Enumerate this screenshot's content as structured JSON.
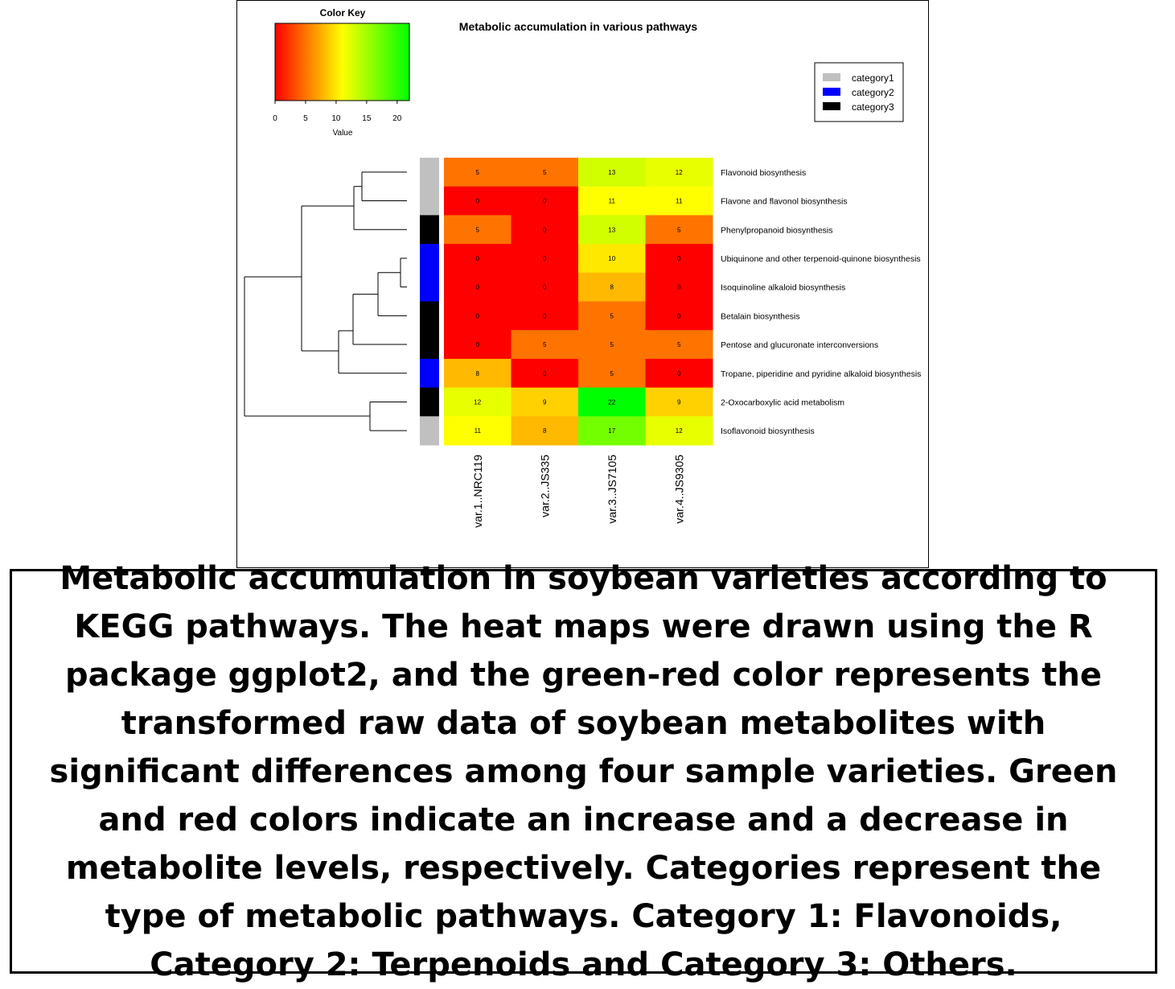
{
  "chart_data": {
    "type": "heatmap",
    "title": "Metabolic accumulation in various pathways",
    "columns": [
      "var.1..NRC119",
      "var.2..JS335",
      "var.3..JS7105",
      "var.4..JS9305"
    ],
    "rows": [
      "Flavonoid biosynthesis",
      "Flavone and flavonol biosynthesis",
      "Phenylpropanoid biosynthesis",
      "Ubiquinone and other terpenoid-quinone biosynthesis",
      "Isoquinoline alkaloid biosynthesis",
      "Betalain biosynthesis",
      "Pentose and glucuronate interconversions",
      "Tropane, piperidine and pyridine alkaloid biosynthesis",
      "2-Oxocarboxylic acid metabolism",
      "Isoflavonoid biosynthesis"
    ],
    "values": [
      [
        5,
        5,
        13,
        12
      ],
      [
        0,
        0,
        11,
        11
      ],
      [
        5,
        0,
        13,
        5
      ],
      [
        0,
        0,
        10,
        0
      ],
      [
        0,
        0,
        8,
        0
      ],
      [
        0,
        0,
        5,
        0
      ],
      [
        0,
        5,
        5,
        5
      ],
      [
        8,
        0,
        5,
        0
      ],
      [
        12,
        9,
        22,
        9
      ],
      [
        11,
        8,
        17,
        12
      ]
    ],
    "row_categories": [
      "category1",
      "category1",
      "category3",
      "category2",
      "category2",
      "category3",
      "category3",
      "category2",
      "category3",
      "category1"
    ],
    "legend": {
      "placement": "top-right",
      "entries": [
        {
          "name": "category1",
          "color": "#c0c0c0"
        },
        {
          "name": "category2",
          "color": "#0000ff"
        },
        {
          "name": "category3",
          "color": "#000000"
        }
      ]
    },
    "color_key": {
      "title": "Color Key",
      "xlabel": "Value",
      "range": [
        0,
        22
      ],
      "ticks": [
        0,
        5,
        10,
        15,
        20
      ],
      "colors": [
        "#ff0000",
        "#ffff00",
        "#00ff00"
      ]
    }
  },
  "caption": "Metabolic accumulation in soybean varieties according to KEGG pathways. The heat maps were drawn using the R package ggplot2, and the green-red color represents the transformed raw data of soybean metabolites with significant differences among four sample varieties. Green and red colors indicate an increase and a decrease in metabolite levels, respectively. Categories represent the type of metabolic pathways. Category 1: Flavonoids, Category 2: Terpenoids and Category 3: Others."
}
